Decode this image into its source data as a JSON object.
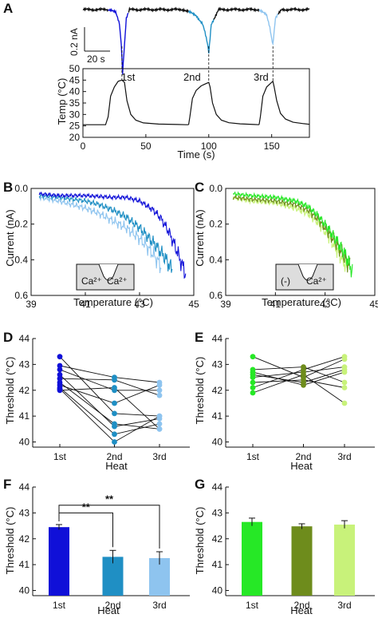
{
  "panel_labels": [
    "A",
    "B",
    "C",
    "D",
    "E",
    "F",
    "G"
  ],
  "colors": {
    "heat1": "#1010d8",
    "heat2": "#1f8fc4",
    "heat3": "#8ec4ef",
    "g1": "#26e826",
    "g2": "#6e8c1c",
    "g3": "#c8f27a",
    "black": "#111111"
  },
  "panelA": {
    "scalebar_current": "0.2 nA",
    "scalebar_time": "20 s",
    "heat_labels": [
      "1st",
      "2nd",
      "3rd"
    ]
  },
  "chart_data": [
    {
      "panel": "A",
      "type": "line",
      "xlabel": "Time (s)",
      "ylabel": "Temp (°C)",
      "xlim": [
        0,
        180
      ],
      "ylim": [
        20,
        50
      ],
      "xticks": [
        "0",
        "50",
        "100",
        "150"
      ],
      "yticks": [
        "20",
        "25",
        "30",
        "35",
        "40",
        "45",
        "50"
      ],
      "series": [
        {
          "name": "1st",
          "x": [
            0,
            18,
            20,
            22,
            25,
            28,
            31,
            33,
            35,
            38,
            42,
            48,
            60,
            75,
            82,
            84
          ],
          "y": [
            25.5,
            25.5,
            29,
            38,
            42,
            44.5,
            45,
            44,
            36,
            30,
            27.5,
            26.3,
            25.8,
            25.6,
            25.5,
            25.5
          ]
        },
        {
          "name": "2nd",
          "x": [
            84,
            85,
            87,
            90,
            94,
            98,
            100,
            101,
            103,
            106,
            110,
            116,
            125,
            136,
            140
          ],
          "y": [
            25.5,
            29,
            37,
            40.5,
            42.5,
            43.5,
            44,
            42,
            35,
            30,
            27.5,
            26.4,
            25.9,
            25.6,
            25.5
          ]
        },
        {
          "name": "3rd",
          "x": [
            140,
            141,
            143,
            146,
            149,
            151,
            152,
            154,
            157,
            161,
            167,
            175,
            180
          ],
          "y": [
            25.5,
            29,
            38,
            42,
            43.5,
            44.5,
            42,
            36,
            30.5,
            28,
            26.6,
            26,
            25.7
          ]
        }
      ],
      "current_trace": {
        "time_s": [
          0,
          22,
          26,
          29,
          30.5,
          31.5,
          33,
          34.5,
          37,
          80,
          90,
          95,
          97,
          99,
          100,
          102,
          108,
          140,
          146,
          148.5,
          150,
          151,
          153,
          158,
          180
        ],
        "current_nA": [
          0,
          0,
          -0.01,
          -0.05,
          -0.12,
          -0.22,
          -0.12,
          -0.03,
          0,
          0,
          -0.02,
          -0.05,
          -0.08,
          -0.12,
          -0.15,
          -0.05,
          0,
          0,
          -0.02,
          -0.06,
          -0.1,
          -0.12,
          -0.03,
          0,
          0
        ]
      }
    },
    {
      "panel": "B",
      "type": "line",
      "xlabel": "Temperature (°C)",
      "ylabel": "Current (nA)",
      "xlim": [
        39,
        45
      ],
      "ylim": [
        0.6,
        0.0
      ],
      "xticks": [
        "39",
        "41",
        "43",
        "45"
      ],
      "yticks": [
        "0.0",
        "0.2",
        "0.4",
        "0.6"
      ],
      "inset_labels": [
        "Ca²⁺",
        "Ca²⁺"
      ],
      "series": [
        {
          "name": "1st",
          "x": [
            39.3,
            40,
            41,
            42,
            42.5,
            43,
            43.5,
            43.8,
            44.1,
            44.3,
            44.5,
            44.7
          ],
          "y": [
            0.03,
            0.04,
            0.04,
            0.05,
            0.05,
            0.07,
            0.12,
            0.17,
            0.25,
            0.32,
            0.4,
            0.48
          ]
        },
        {
          "name": "2nd",
          "x": [
            39.3,
            40,
            40.5,
            41,
            41.5,
            42,
            42.5,
            43,
            43.3,
            43.6,
            43.9,
            44.1,
            44.2
          ],
          "y": [
            0.04,
            0.05,
            0.06,
            0.07,
            0.09,
            0.12,
            0.16,
            0.22,
            0.27,
            0.32,
            0.38,
            0.43,
            0.46
          ]
        },
        {
          "name": "3rd",
          "x": [
            39.3,
            40,
            40.5,
            41,
            41.5,
            42,
            42.5,
            43,
            43.3,
            43.6,
            43.8
          ],
          "y": [
            0.05,
            0.07,
            0.09,
            0.11,
            0.14,
            0.18,
            0.22,
            0.28,
            0.33,
            0.39,
            0.44
          ]
        }
      ]
    },
    {
      "panel": "C",
      "type": "line",
      "xlabel": "Temperature (°C)",
      "ylabel": "Current (nA)",
      "xlim": [
        39,
        45
      ],
      "ylim": [
        0.6,
        0.0
      ],
      "xticks": [
        "39",
        "41",
        "43",
        "45"
      ],
      "yticks": [
        "0.0",
        "0.2",
        "0.4",
        "0.6"
      ],
      "inset_labels": [
        "(-)",
        "Ca²⁺"
      ],
      "series": [
        {
          "name": "1st",
          "x": [
            39.3,
            40,
            41,
            41.8,
            42.3,
            42.7,
            43.1,
            43.5,
            43.8,
            44.0,
            44.1
          ],
          "y": [
            0.03,
            0.04,
            0.05,
            0.07,
            0.1,
            0.15,
            0.22,
            0.3,
            0.37,
            0.43,
            0.47
          ]
        },
        {
          "name": "2nd",
          "x": [
            39.3,
            40,
            41,
            41.8,
            42.3,
            42.7,
            43.1,
            43.5,
            43.8,
            44.0
          ],
          "y": [
            0.05,
            0.06,
            0.07,
            0.09,
            0.12,
            0.17,
            0.24,
            0.32,
            0.39,
            0.44
          ]
        },
        {
          "name": "3rd",
          "x": [
            39.3,
            40,
            41,
            41.8,
            42.3,
            42.7,
            43.1,
            43.4,
            43.7,
            43.9
          ],
          "y": [
            0.05,
            0.07,
            0.08,
            0.11,
            0.14,
            0.19,
            0.26,
            0.33,
            0.4,
            0.45
          ]
        }
      ]
    },
    {
      "panel": "D",
      "type": "scatter",
      "xlabel": "Heat",
      "ylabel": "Threshold (°C)",
      "categories": [
        "1st",
        "2nd",
        "3rd"
      ],
      "ylim": [
        39.8,
        44
      ],
      "yticks": [
        "40",
        "41",
        "42",
        "43",
        "44"
      ],
      "cells": [
        [
          43.3,
          41.1,
          41.0
        ],
        [
          42.95,
          42.5,
          42.3
        ],
        [
          42.8,
          42.0,
          42.0
        ],
        [
          42.6,
          40.6,
          40.9
        ],
        [
          42.3,
          40.7,
          40.5
        ],
        [
          42.2,
          41.5,
          42.2
        ],
        [
          42.1,
          40.3,
          40.7
        ],
        [
          42.45,
          42.4,
          41.8
        ],
        [
          42.05,
          40.0,
          41.0
        ],
        [
          42.0,
          42.1,
          40.5
        ]
      ]
    },
    {
      "panel": "E",
      "type": "scatter",
      "xlabel": "Heat",
      "ylabel": "Threshold (°C)",
      "categories": [
        "1st",
        "2nd",
        "3rd"
      ],
      "ylim": [
        39.8,
        44
      ],
      "yticks": [
        "40",
        "41",
        "42",
        "43",
        "44"
      ],
      "cells": [
        [
          43.3,
          42.5,
          43.2
        ],
        [
          42.8,
          42.9,
          42.3
        ],
        [
          42.7,
          42.2,
          42.7
        ],
        [
          42.5,
          42.7,
          42.9
        ],
        [
          42.3,
          42.4,
          42.1
        ],
        [
          42.1,
          42.8,
          43.3
        ],
        [
          41.9,
          42.6,
          41.5
        ],
        [
          42.6,
          42.3,
          42.8
        ]
      ]
    },
    {
      "panel": "F",
      "type": "bar",
      "xlabel": "Heat",
      "ylabel": "Threshold (°C)",
      "categories": [
        "1st",
        "2nd",
        "3rd"
      ],
      "values": [
        42.45,
        41.3,
        41.25
      ],
      "errors": [
        0.1,
        0.25,
        0.25
      ],
      "ylim": [
        39.8,
        44
      ],
      "yticks": [
        "40",
        "41",
        "42",
        "43",
        "44"
      ],
      "significance": [
        {
          "from": "1st",
          "to": "2nd",
          "label": "**"
        },
        {
          "from": "1st",
          "to": "3rd",
          "label": "**"
        }
      ]
    },
    {
      "panel": "G",
      "type": "bar",
      "xlabel": "Heat",
      "ylabel": "Threshold (°C)",
      "categories": [
        "1st",
        "2nd",
        "3rd"
      ],
      "values": [
        42.65,
        42.48,
        42.55
      ],
      "errors": [
        0.15,
        0.1,
        0.15
      ],
      "ylim": [
        39.8,
        44
      ],
      "yticks": [
        "40",
        "41",
        "42",
        "43",
        "44"
      ]
    }
  ]
}
